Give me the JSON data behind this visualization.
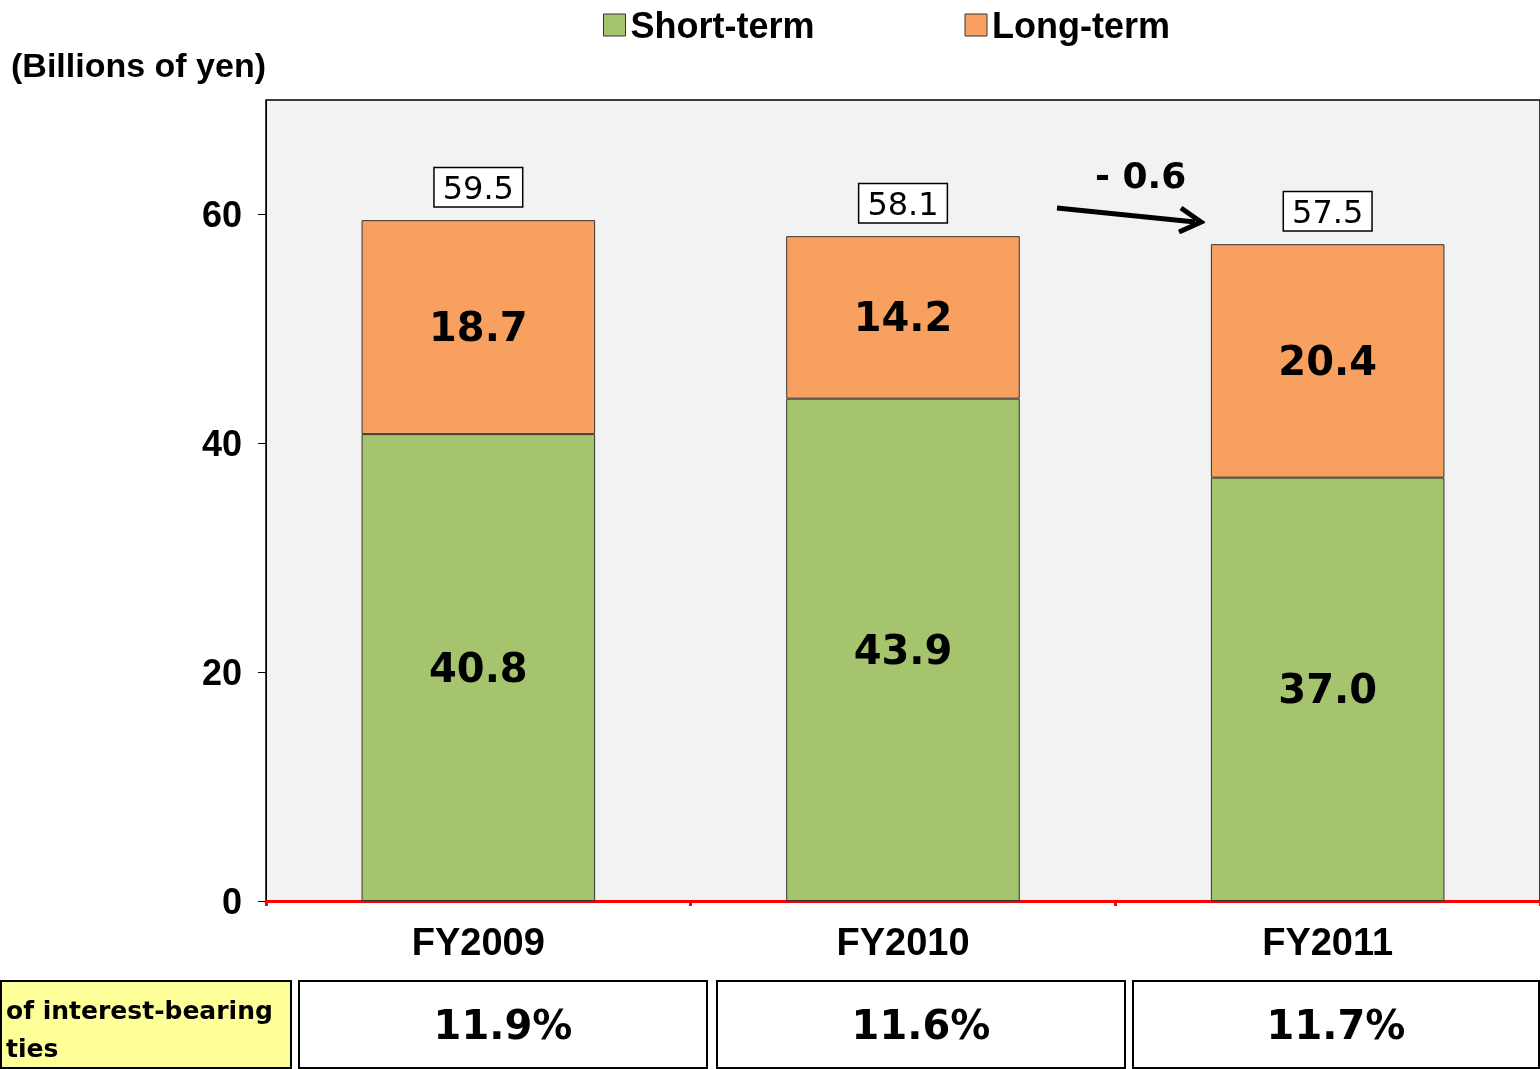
{
  "chart_data": {
    "type": "bar",
    "stacked": true,
    "ylabel": "(Billions of yen)",
    "categories": [
      "FY2009",
      "FY2010",
      "FY2011"
    ],
    "series": [
      {
        "name": "Short-term",
        "color": "#a6c46e",
        "values": [
          40.8,
          43.9,
          37.0
        ],
        "value_labels": [
          "40.8",
          "43.9",
          "37.0"
        ]
      },
      {
        "name": "Long-term",
        "color": "#f7a060",
        "values": [
          18.7,
          14.2,
          20.4
        ],
        "value_labels": [
          "18.7",
          "14.2",
          "20.4"
        ]
      }
    ],
    "totals": [
      "59.5",
      "58.1",
      "57.5"
    ],
    "ylim": [
      0,
      70
    ],
    "yticks": [
      0,
      20,
      40,
      60
    ],
    "grid": false,
    "legend": "top",
    "annotations": [
      "- 0.6",
      "of interest-bearing\nties",
      "11.9%",
      "11.6%",
      "11.7%"
    ]
  }
}
